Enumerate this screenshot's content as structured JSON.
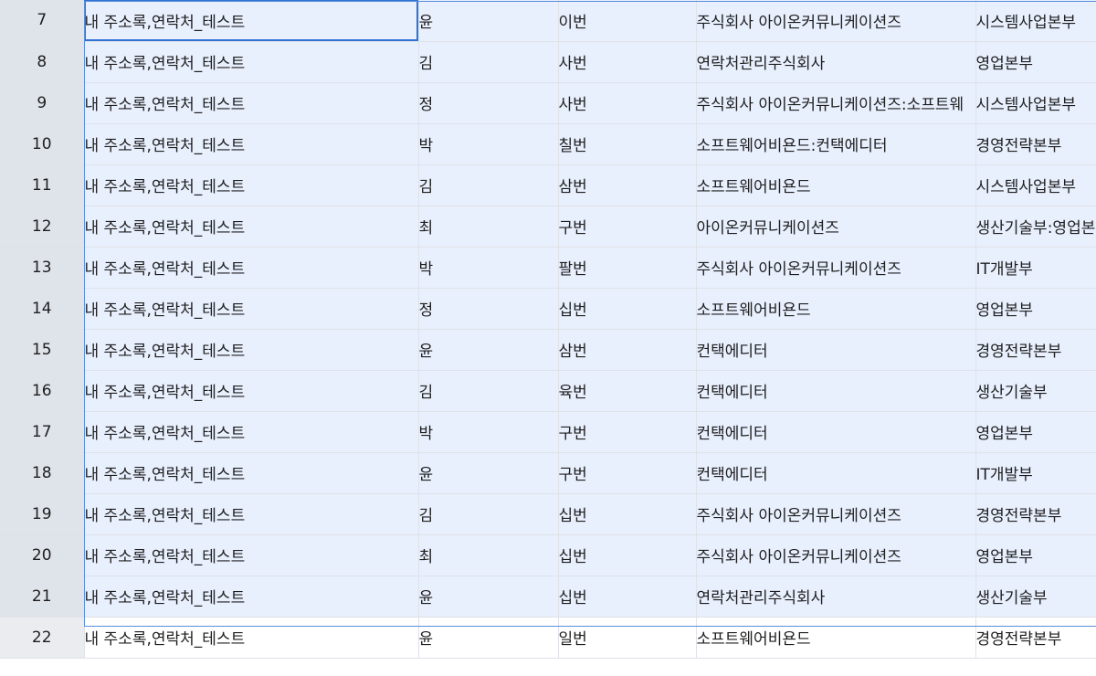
{
  "rows": [
    {
      "num": "7",
      "c1": "내 주소록,연락처_테스트",
      "c2": "윤",
      "c3": "이번",
      "c4": "주식회사 아이온커뮤니케이션즈",
      "c5": "시스템사업본부"
    },
    {
      "num": "8",
      "c1": "내 주소록,연락처_테스트",
      "c2": "김",
      "c3": "사번",
      "c4": "연락처관리주식회사",
      "c5": "영업본부"
    },
    {
      "num": "9",
      "c1": "내 주소록,연락처_테스트",
      "c2": "정",
      "c3": "사번",
      "c4": "주식회사 아이온커뮤니케이션즈:소프트웨",
      "c5": "시스템사업본부"
    },
    {
      "num": "10",
      "c1": "내 주소록,연락처_테스트",
      "c2": "박",
      "c3": "칠번",
      "c4": "소프트웨어비욘드:컨택에디터",
      "c5": "경영전략본부"
    },
    {
      "num": "11",
      "c1": "내 주소록,연락처_테스트",
      "c2": "김",
      "c3": "삼번",
      "c4": "소프트웨어비욘드",
      "c5": "시스템사업본부"
    },
    {
      "num": "12",
      "c1": "내 주소록,연락처_테스트",
      "c2": "최",
      "c3": "구번",
      "c4": "아이온커뮤니케이션즈",
      "c5": "생산기술부:영업본"
    },
    {
      "num": "13",
      "c1": "내 주소록,연락처_테스트",
      "c2": "박",
      "c3": "팔번",
      "c4": "주식회사 아이온커뮤니케이션즈",
      "c5": "IT개발부"
    },
    {
      "num": "14",
      "c1": "내 주소록,연락처_테스트",
      "c2": "정",
      "c3": "십번",
      "c4": "소프트웨어비욘드",
      "c5": "영업본부"
    },
    {
      "num": "15",
      "c1": "내 주소록,연락처_테스트",
      "c2": "윤",
      "c3": "삼번",
      "c4": "컨택에디터",
      "c5": "경영전략본부"
    },
    {
      "num": "16",
      "c1": "내 주소록,연락처_테스트",
      "c2": "김",
      "c3": "육번",
      "c4": "컨택에디터",
      "c5": "생산기술부"
    },
    {
      "num": "17",
      "c1": "내 주소록,연락처_테스트",
      "c2": "박",
      "c3": "구번",
      "c4": "컨택에디터",
      "c5": "영업본부"
    },
    {
      "num": "18",
      "c1": "내 주소록,연락처_테스트",
      "c2": "윤",
      "c3": "구번",
      "c4": "컨택에디터",
      "c5": "IT개발부"
    },
    {
      "num": "19",
      "c1": "내 주소록,연락처_테스트",
      "c2": "김",
      "c3": "십번",
      "c4": "주식회사 아이온커뮤니케이션즈",
      "c5": "경영전략본부"
    },
    {
      "num": "20",
      "c1": "내 주소록,연락처_테스트",
      "c2": "최",
      "c3": "십번",
      "c4": "주식회사 아이온커뮤니케이션즈",
      "c5": "영업본부"
    },
    {
      "num": "21",
      "c1": "내 주소록,연락처_테스트",
      "c2": "윤",
      "c3": "십번",
      "c4": "연락처관리주식회사",
      "c5": "생산기술부"
    },
    {
      "num": "22",
      "c1": "내 주소록,연락처_테스트",
      "c2": "윤",
      "c3": "일번",
      "c4": "소프트웨어비욘드",
      "c5": "경영전략본부"
    }
  ],
  "selection": {
    "first_row": "7",
    "last_row": "21",
    "active_cell": "B7"
  },
  "colors": {
    "selection_fill": "#e8effd",
    "selection_border": "#2f73d4",
    "header_fill": "#eaecef"
  }
}
